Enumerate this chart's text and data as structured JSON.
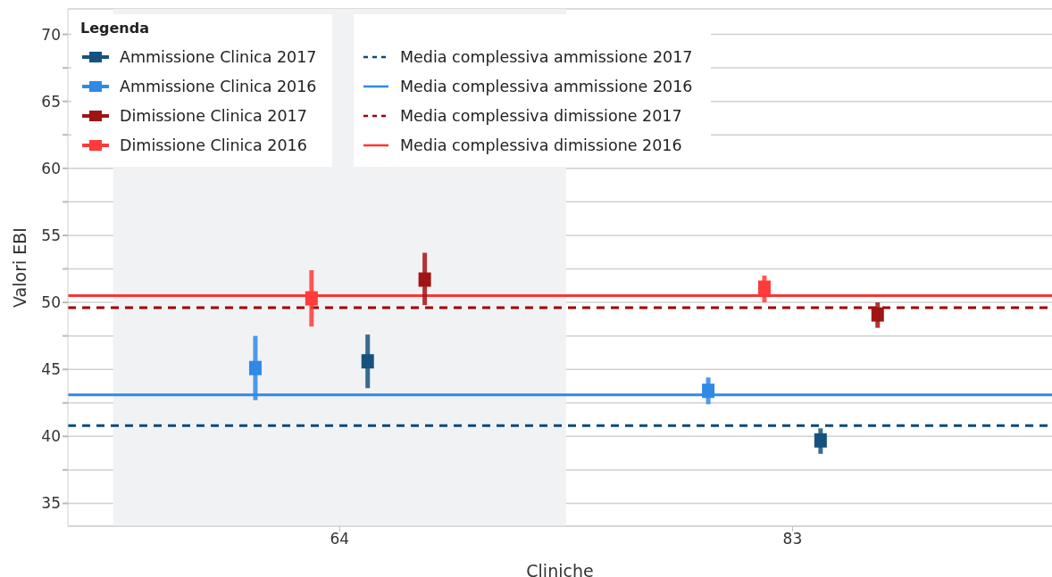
{
  "chart_data": {
    "type": "scatter",
    "xlabel": "Cliniche",
    "ylabel": "Valori EBI",
    "legend_title": "Legenda",
    "categories": [
      "64",
      "83"
    ],
    "series": [
      {
        "name": "Ammissione Clinica 2017",
        "color": "#15537e",
        "values": [
          45.6,
          39.7
        ],
        "errors": [
          [
            43.6,
            47.6
          ],
          [
            38.7,
            40.6
          ]
        ]
      },
      {
        "name": "Ammissione Clinica 2016",
        "color": "#2e8ae6",
        "values": [
          45.1,
          43.4
        ],
        "errors": [
          [
            42.7,
            47.5
          ],
          [
            42.4,
            44.4
          ]
        ]
      },
      {
        "name": "Dimissione Clinica 2017",
        "color": "#a01414",
        "values": [
          51.7,
          49.1
        ],
        "errors": [
          [
            49.8,
            53.7
          ],
          [
            48.1,
            50.0
          ]
        ]
      },
      {
        "name": "Dimissione Clinica 2016",
        "color": "#ff3b3b",
        "values": [
          50.3,
          51.1
        ],
        "errors": [
          [
            48.2,
            52.4
          ],
          [
            50.0,
            52.0
          ]
        ]
      }
    ],
    "ref_lines": [
      {
        "axis": "y",
        "value": 40.8,
        "label": "Media complessiva ammissione 2017",
        "color": "#0c4a78",
        "line_style": "dashed"
      },
      {
        "axis": "y",
        "value": 43.1,
        "label": "Media complessiva ammissione 2016",
        "color": "#2e8ae6",
        "line_style": "solid"
      },
      {
        "axis": "y",
        "value": 49.6,
        "label": "Media complessiva dimissione 2017",
        "color": "#9e0000",
        "line_style": "dashed"
      },
      {
        "axis": "y",
        "value": 50.5,
        "label": "Media complessiva dimissione 2016",
        "color": "#ff3333",
        "line_style": "solid"
      }
    ],
    "bands": [
      {
        "axis": "x",
        "from": "64",
        "to": "64",
        "color": "#f1f2f4"
      }
    ],
    "ylim": [
      33.3,
      71.9
    ],
    "yticks": [
      35,
      {
        "value": 37.5,
        "label": null
      },
      40,
      {
        "value": 42.5,
        "label": null
      },
      45,
      {
        "value": 47.5,
        "label": null
      },
      50,
      {
        "value": 52.5,
        "label": null
      },
      55,
      {
        "value": 57.5,
        "label": null
      },
      60,
      {
        "value": 62.5,
        "label": null
      },
      65,
      {
        "value": 67.5,
        "label": null
      },
      70
    ],
    "grid": "y",
    "legend": "top left",
    "marker": "square"
  }
}
